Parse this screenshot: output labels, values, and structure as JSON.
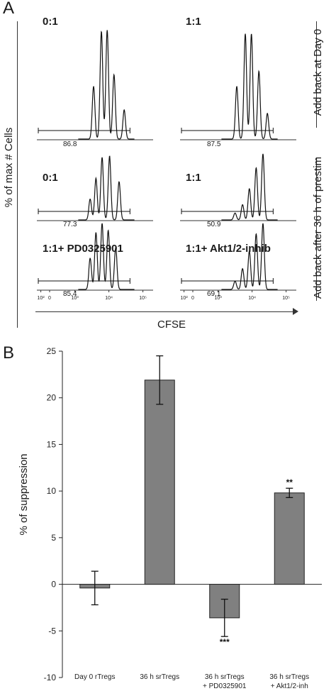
{
  "panel_a": {
    "label": "A",
    "y_axis_title": "% of max # Cells",
    "x_axis_title": "CFSE",
    "x_tick_labels": [
      "0",
      "10²",
      "10³",
      "10⁴",
      "10⁵"
    ],
    "right_labels": [
      "Add back at Day 0",
      "Add back after 36 h of prestim"
    ],
    "histograms": [
      {
        "ratio": "0:1",
        "gate_value": "86.8",
        "peaks": [
          [
            3.55,
            0.45
          ],
          [
            3.78,
            0.92
          ],
          [
            3.95,
            0.93
          ],
          [
            4.15,
            0.55
          ],
          [
            4.45,
            0.25
          ]
        ]
      },
      {
        "ratio": "1:1",
        "gate_value": "87.5",
        "peaks": [
          [
            3.55,
            0.45
          ],
          [
            3.8,
            0.9
          ],
          [
            3.98,
            0.9
          ],
          [
            4.2,
            0.58
          ],
          [
            4.45,
            0.22
          ]
        ]
      },
      {
        "ratio": "0:1",
        "gate_value": "77.3",
        "peaks": [
          [
            3.45,
            0.3
          ],
          [
            3.62,
            0.6
          ],
          [
            3.8,
            0.9
          ],
          [
            4.02,
            0.92
          ],
          [
            4.3,
            0.55
          ]
        ]
      },
      {
        "ratio": "1:1",
        "gate_value": "50.9",
        "peaks": [
          [
            3.5,
            0.1
          ],
          [
            3.72,
            0.22
          ],
          [
            3.92,
            0.45
          ],
          [
            4.12,
            0.75
          ],
          [
            4.32,
            0.95
          ]
        ]
      },
      {
        "ratio": "1:1+ PD0325901",
        "gate_value": "85.4",
        "peaks": [
          [
            3.45,
            0.45
          ],
          [
            3.62,
            0.82
          ],
          [
            3.8,
            0.95
          ],
          [
            3.98,
            0.85
          ],
          [
            4.2,
            0.6
          ]
        ]
      },
      {
        "ratio": "1:1+ Akt1/2-inhib",
        "gate_value": "69.1",
        "peaks": [
          [
            3.5,
            0.12
          ],
          [
            3.72,
            0.3
          ],
          [
            3.92,
            0.55
          ],
          [
            4.12,
            0.8
          ],
          [
            4.32,
            0.95
          ]
        ]
      }
    ]
  },
  "panel_b": {
    "label": "B",
    "chart_data": {
      "type": "bar",
      "title": "",
      "xlabel": "",
      "ylabel": "% of suppression",
      "ylim": [
        -10,
        25
      ],
      "yticks": [
        -10,
        -5,
        0,
        5,
        10,
        15,
        20,
        25
      ],
      "categories": [
        {
          "line1": "Day 0 rTregs",
          "line2": ""
        },
        {
          "line1": "36 h srTregs",
          "line2": ""
        },
        {
          "line1": "36 h srTregs",
          "line2": "+ PD0325901"
        },
        {
          "line1": "36 h srTregs",
          "line2": "+ Akt1/2-inh"
        }
      ],
      "values": [
        -0.4,
        21.9,
        -3.6,
        9.8
      ],
      "errors": [
        1.8,
        2.6,
        2.0,
        0.5
      ],
      "significance": [
        "",
        "",
        "***",
        "**"
      ],
      "bar_color": "#808080"
    }
  }
}
